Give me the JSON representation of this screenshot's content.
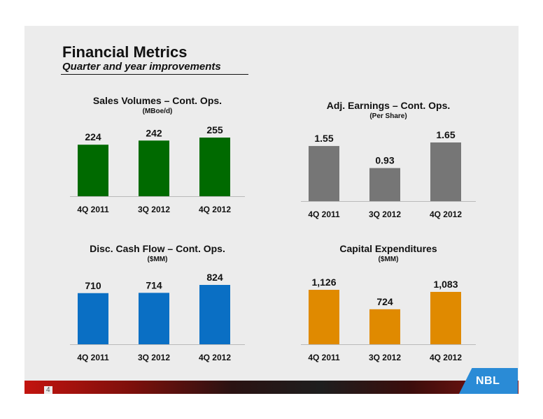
{
  "header": {
    "title": "Financial Metrics",
    "subtitle": "Quarter and year improvements"
  },
  "footer": {
    "page_number": "4",
    "logo_text": "NBL",
    "logo_color": "#2a8bd6"
  },
  "chart_data": [
    {
      "type": "bar",
      "title": "Sales Volumes – Cont. Ops.",
      "unit": "(MBoe/d)",
      "categories": [
        "4Q 2011",
        "3Q 2012",
        "4Q 2012"
      ],
      "values": [
        224,
        242,
        255
      ],
      "labels": [
        "224",
        "242",
        "255"
      ],
      "color": "#006a00",
      "grid": false
    },
    {
      "type": "bar",
      "title": "Adj. Earnings – Cont. Ops.",
      "unit": "(Per Share)",
      "categories": [
        "4Q 2011",
        "3Q 2012",
        "4Q 2012"
      ],
      "values": [
        1.55,
        0.93,
        1.65
      ],
      "labels": [
        "1.55",
        "0.93",
        "1.65"
      ],
      "color": "#767676",
      "grid": false
    },
    {
      "type": "bar",
      "title": "Disc. Cash Flow – Cont. Ops.",
      "unit": "($MM)",
      "categories": [
        "4Q 2011",
        "3Q 2012",
        "4Q 2012"
      ],
      "values": [
        710,
        714,
        824
      ],
      "labels": [
        "710",
        "714",
        "824"
      ],
      "color": "#0a6fc4",
      "grid": false
    },
    {
      "type": "bar",
      "title": "Capital Expenditures",
      "unit": "($MM)",
      "categories": [
        "4Q 2011",
        "3Q 2012",
        "4Q 2012"
      ],
      "values": [
        1126,
        724,
        1083
      ],
      "labels": [
        "1,126",
        "724",
        "1,083"
      ],
      "color": "#e08a00",
      "grid": false
    }
  ]
}
